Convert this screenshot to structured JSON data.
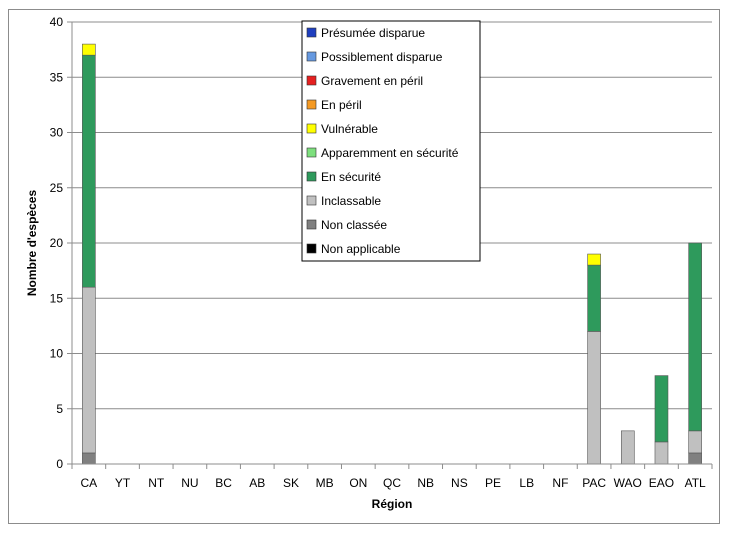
{
  "chart_data": {
    "type": "bar",
    "stacked": true,
    "title": "",
    "xlabel": "Région",
    "ylabel": "Nombre d'espèces",
    "ylim": [
      0,
      40
    ],
    "yticks": [
      0,
      5,
      10,
      15,
      20,
      25,
      30,
      35,
      40
    ],
    "grid": true,
    "legend_position": "top-center",
    "categories": [
      "CA",
      "YT",
      "NT",
      "NU",
      "BC",
      "AB",
      "SK",
      "MB",
      "ON",
      "QC",
      "NB",
      "NS",
      "PE",
      "LB",
      "NF",
      "PAC",
      "WAO",
      "EAO",
      "ATL"
    ],
    "series": [
      {
        "name": "Présumée disparue",
        "color": "#1f3fbf",
        "values": [
          0,
          0,
          0,
          0,
          0,
          0,
          0,
          0,
          0,
          0,
          0,
          0,
          0,
          0,
          0,
          0,
          0,
          0,
          0
        ]
      },
      {
        "name": "Possiblement disparue",
        "color": "#6699e0",
        "values": [
          0,
          0,
          0,
          0,
          0,
          0,
          0,
          0,
          0,
          0,
          0,
          0,
          0,
          0,
          0,
          0,
          0,
          0,
          0
        ]
      },
      {
        "name": "Gravement en péril",
        "color": "#e52020",
        "values": [
          0,
          0,
          0,
          0,
          0,
          0,
          0,
          0,
          0,
          0,
          0,
          0,
          0,
          0,
          0,
          0,
          0,
          0,
          0
        ]
      },
      {
        "name": "En péril",
        "color": "#f59a23",
        "values": [
          0,
          0,
          0,
          0,
          0,
          0,
          0,
          0,
          0,
          0,
          0,
          0,
          0,
          0,
          0,
          0,
          0,
          0,
          0
        ]
      },
      {
        "name": "Vulnérable",
        "color": "#ffff00",
        "values": [
          1,
          0,
          0,
          0,
          0,
          0,
          0,
          0,
          0,
          0,
          0,
          0,
          0,
          0,
          0,
          1,
          0,
          0,
          0
        ]
      },
      {
        "name": "Apparemment en sécurité",
        "color": "#7ddf7d",
        "values": [
          0,
          0,
          0,
          0,
          0,
          0,
          0,
          0,
          0,
          0,
          0,
          0,
          0,
          0,
          0,
          0,
          0,
          0,
          0
        ]
      },
      {
        "name": "En sécurité",
        "color": "#2e9a5c",
        "values": [
          21,
          0,
          0,
          0,
          0,
          0,
          0,
          0,
          0,
          0,
          0,
          0,
          0,
          0,
          0,
          6,
          0,
          6,
          17
        ]
      },
      {
        "name": "Inclassable",
        "color": "#c0c0c0",
        "values": [
          15,
          0,
          0,
          0,
          0,
          0,
          0,
          0,
          0,
          0,
          0,
          0,
          0,
          0,
          0,
          12,
          3,
          2,
          2
        ]
      },
      {
        "name": "Non classée",
        "color": "#808080",
        "values": [
          1,
          0,
          0,
          0,
          0,
          0,
          0,
          0,
          0,
          0,
          0,
          0,
          0,
          0,
          0,
          0,
          0,
          0,
          1
        ]
      },
      {
        "name": "Non applicable",
        "color": "#000000",
        "values": [
          0,
          0,
          0,
          0,
          0,
          0,
          0,
          0,
          0,
          0,
          0,
          0,
          0,
          0,
          0,
          0,
          0,
          0,
          0
        ]
      }
    ]
  }
}
